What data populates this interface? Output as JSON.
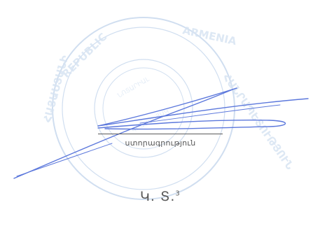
{
  "signature_block": {
    "caption": "ստորագրություն"
  },
  "seal_block": {
    "label": "Կ. Տ.",
    "footnote_marker": "3"
  },
  "stamp": {
    "legend_text": "REPUBLIC OF ARMENIA"
  },
  "colors": {
    "stamp": "#aac4e4",
    "signature_ink": "#5c78dc",
    "text": "#5a5a5a"
  }
}
